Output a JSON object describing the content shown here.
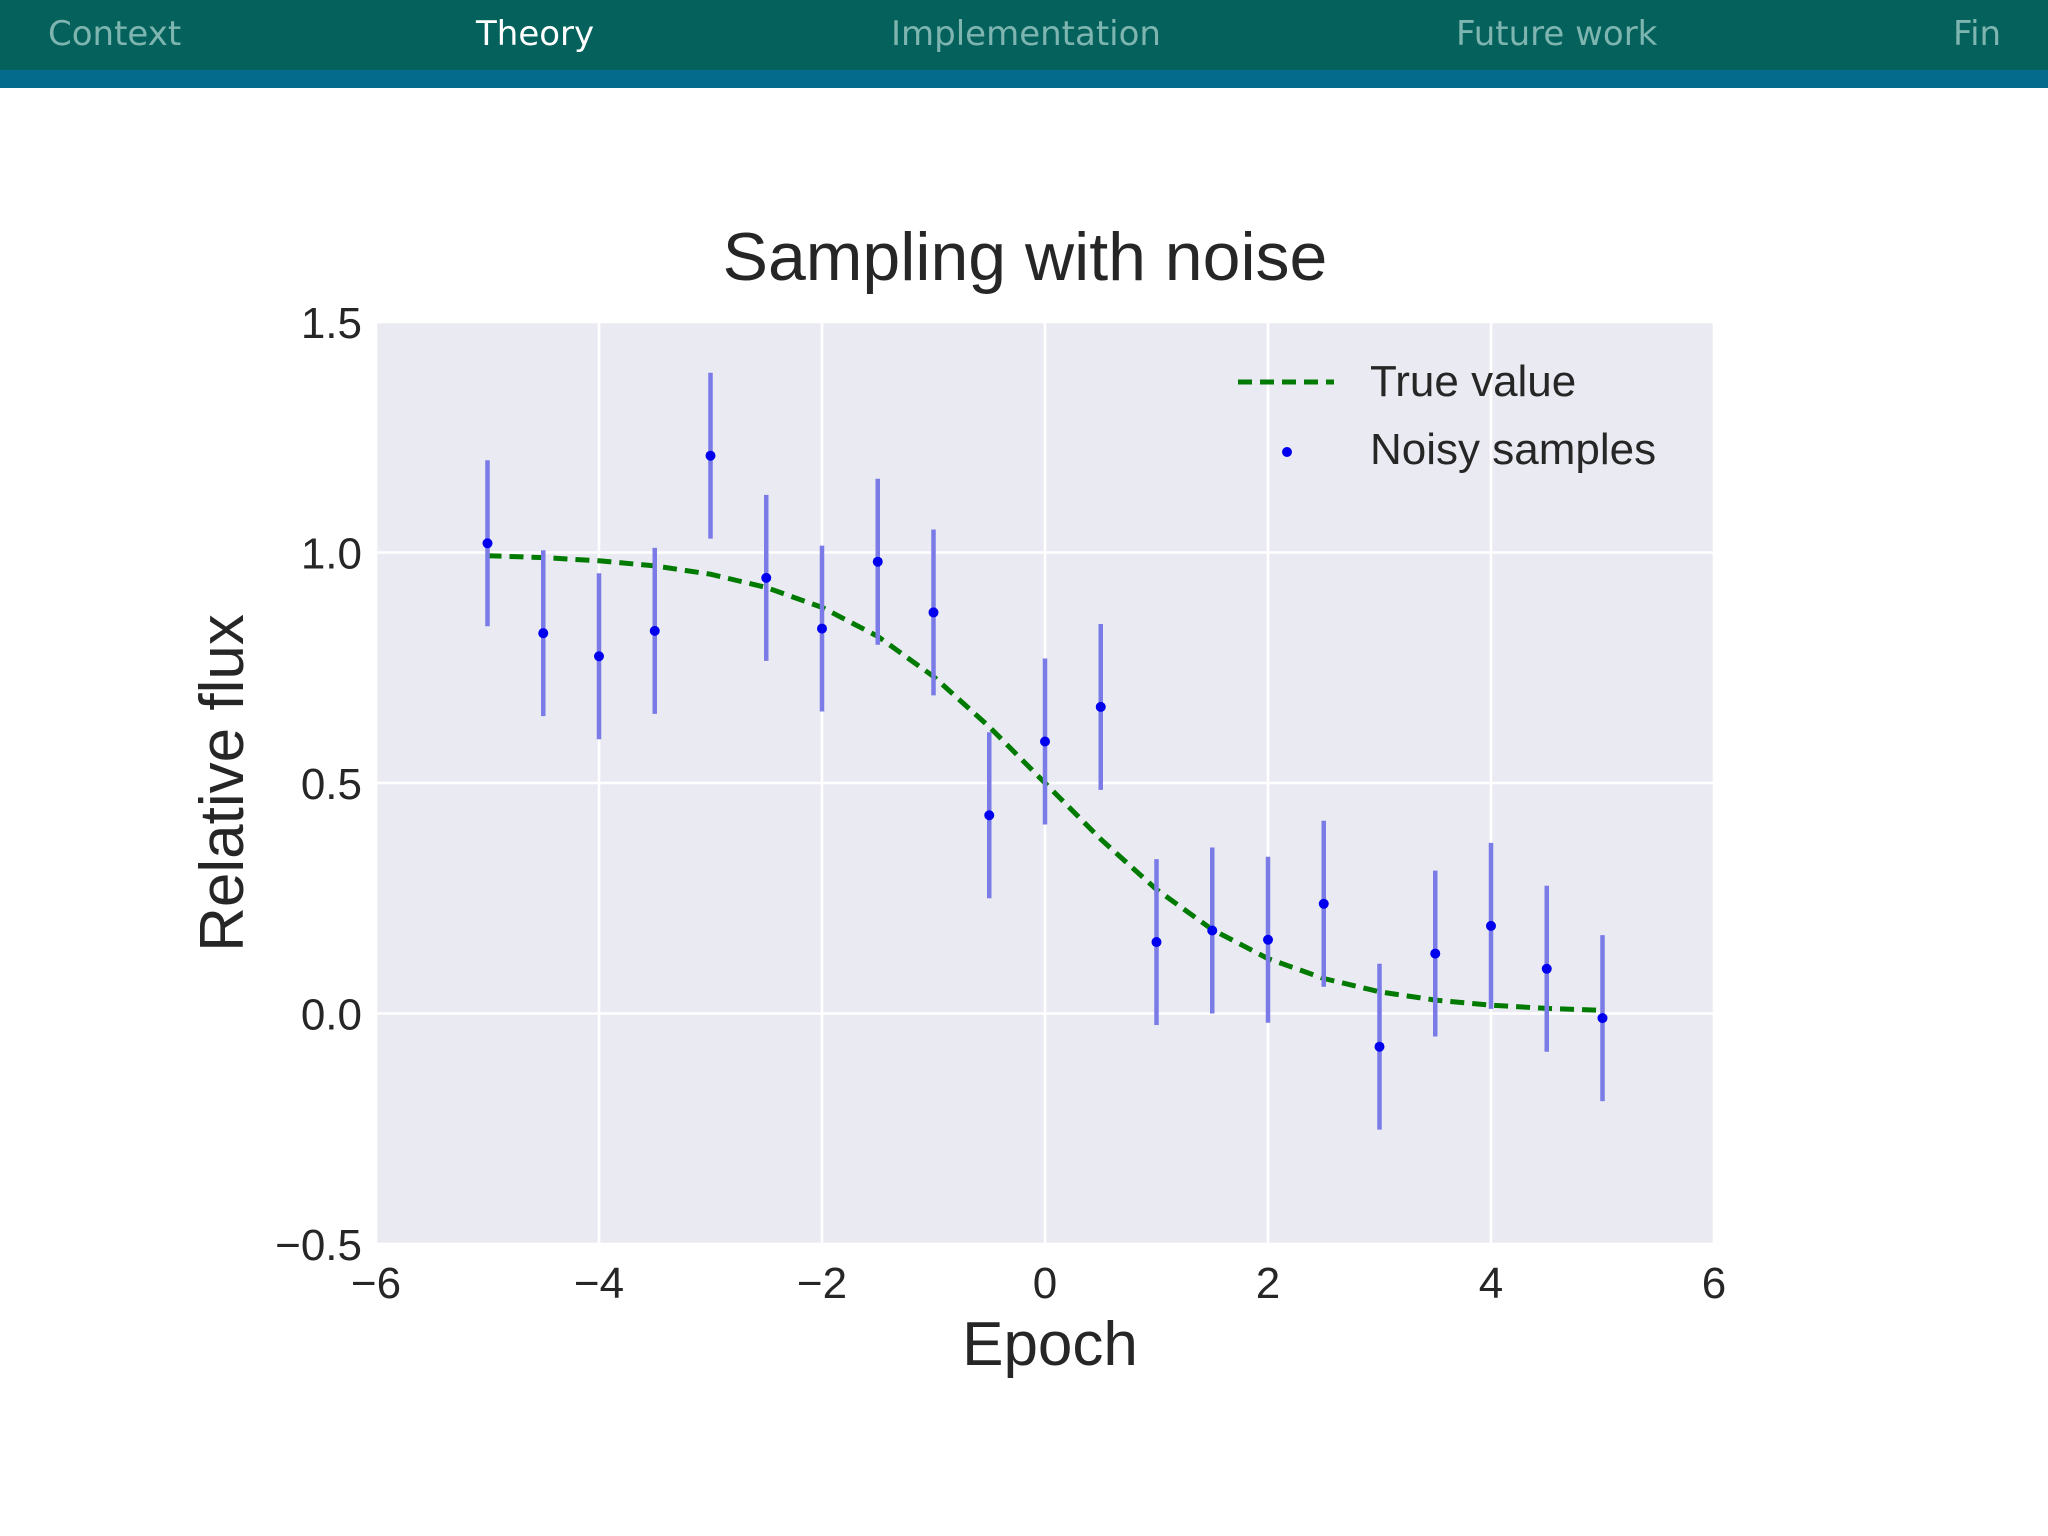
{
  "nav": {
    "items": [
      {
        "label": "Context",
        "active": false
      },
      {
        "label": "Theory",
        "active": true
      },
      {
        "label": "Implementation",
        "active": false
      },
      {
        "label": "Future work",
        "active": false
      },
      {
        "label": "Fin",
        "active": false
      }
    ]
  },
  "colors": {
    "nav_bg": "#04615b",
    "nav_strip": "#046b8c",
    "plot_bg": "#eaeaf2",
    "true_line": "#007a00",
    "points": "#0000ee",
    "errorbars": "#7b7be8"
  },
  "chart_data": {
    "type": "scatter",
    "title": "Sampling with noise",
    "xlabel": "Epoch",
    "ylabel": "Relative flux",
    "xlim": [
      -6,
      6
    ],
    "ylim": [
      -0.5,
      1.5
    ],
    "xticks": [
      -6,
      -4,
      -2,
      0,
      2,
      4,
      6
    ],
    "xtick_labels": [
      "−6",
      "−4",
      "−2",
      "0",
      "2",
      "4",
      "6"
    ],
    "yticks": [
      -0.5,
      0.0,
      0.5,
      1.0,
      1.5
    ],
    "ytick_labels": [
      "−0.5",
      "0.0",
      "0.5",
      "1.0",
      "1.5"
    ],
    "grid": true,
    "legend_position": "top-right",
    "series": [
      {
        "name": "True value",
        "type": "line",
        "style": "dashed",
        "x": [
          -5,
          -4.5,
          -4,
          -3.5,
          -3,
          -2.5,
          -2,
          -1.5,
          -1,
          -0.5,
          0,
          0.5,
          1,
          1.5,
          2,
          2.5,
          3,
          3.5,
          4,
          4.5,
          5
        ],
        "y": [
          0.993,
          0.989,
          0.982,
          0.971,
          0.953,
          0.924,
          0.881,
          0.818,
          0.731,
          0.622,
          0.5,
          0.378,
          0.269,
          0.182,
          0.119,
          0.076,
          0.047,
          0.029,
          0.018,
          0.011,
          0.007
        ]
      },
      {
        "name": "Noisy samples",
        "type": "errorbar",
        "x": [
          -5,
          -4.5,
          -4,
          -3.5,
          -3,
          -2.5,
          -2,
          -1.5,
          -1,
          -0.5,
          0,
          0.5,
          1,
          1.5,
          2,
          2.5,
          3,
          3.5,
          4,
          4.5,
          5
        ],
        "y": [
          1.02,
          0.825,
          0.775,
          0.83,
          1.21,
          0.945,
          0.835,
          0.98,
          0.87,
          0.43,
          0.59,
          0.665,
          0.155,
          0.18,
          0.16,
          0.238,
          -0.072,
          0.13,
          0.19,
          0.097,
          -0.01
        ],
        "yerr": 0.18
      }
    ]
  }
}
